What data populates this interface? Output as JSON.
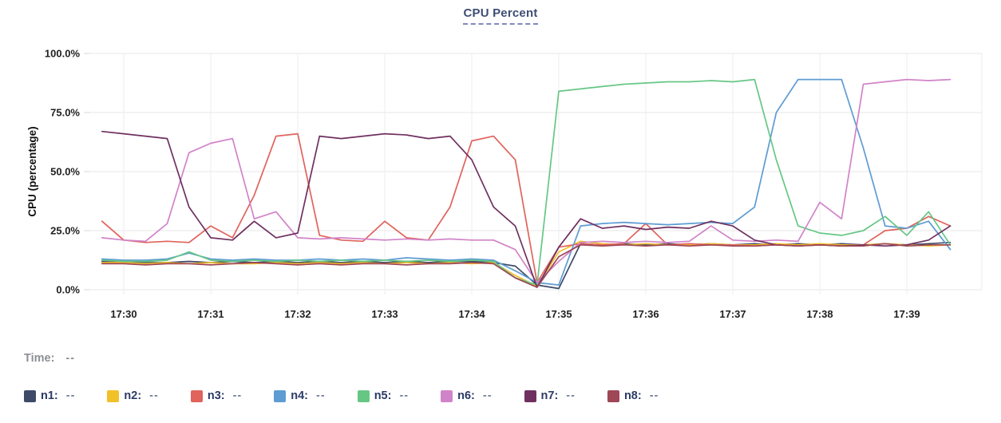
{
  "title": "CPU Percent",
  "time_row": {
    "label": "Time:",
    "value": "--"
  },
  "legend": {
    "items": [
      {
        "id": "n1",
        "label": "n1:",
        "value": "--",
        "color": "#3e4a68"
      },
      {
        "id": "n2",
        "label": "n2:",
        "value": "--",
        "color": "#f2c029"
      },
      {
        "id": "n3",
        "label": "n3:",
        "value": "--",
        "color": "#e0635c"
      },
      {
        "id": "n4",
        "label": "n4:",
        "value": "--",
        "color": "#5e9cd3"
      },
      {
        "id": "n5",
        "label": "n5:",
        "value": "--",
        "color": "#66c784"
      },
      {
        "id": "n6",
        "label": "n6:",
        "value": "--",
        "color": "#d183c9"
      },
      {
        "id": "n7",
        "label": "n7:",
        "value": "--",
        "color": "#6f3060"
      },
      {
        "id": "n8",
        "label": "n8:",
        "value": "--",
        "color": "#9e4756"
      }
    ]
  },
  "chart_data": {
    "type": "line",
    "title": "CPU Percent",
    "ylabel": "CPU (percentage)",
    "xlabel": "",
    "ylim": [
      0,
      100
    ],
    "grid": true,
    "legend_position": "bottom",
    "y_ticks": [
      {
        "value": 0,
        "label": "0.0%"
      },
      {
        "value": 25,
        "label": "25.0%"
      },
      {
        "value": 50,
        "label": "50.0%"
      },
      {
        "value": 75,
        "label": "75.0%"
      },
      {
        "value": 100,
        "label": "100.0%"
      }
    ],
    "x_ticks": [
      "17:30",
      "17:31",
      "17:32",
      "17:33",
      "17:34",
      "17:35",
      "17:36",
      "17:37",
      "17:38",
      "17:39"
    ],
    "x": [
      "17:29:45",
      "17:30:00",
      "17:30:15",
      "17:30:30",
      "17:30:45",
      "17:31:00",
      "17:31:15",
      "17:31:30",
      "17:31:45",
      "17:32:00",
      "17:32:15",
      "17:32:30",
      "17:32:45",
      "17:33:00",
      "17:33:15",
      "17:33:30",
      "17:33:45",
      "17:34:00",
      "17:34:15",
      "17:34:30",
      "17:34:45",
      "17:35:00",
      "17:35:15",
      "17:35:30",
      "17:35:45",
      "17:36:00",
      "17:36:15",
      "17:36:30",
      "17:36:45",
      "17:37:00",
      "17:37:15",
      "17:37:30",
      "17:37:45",
      "17:38:00",
      "17:38:15",
      "17:38:30",
      "17:38:45",
      "17:39:00",
      "17:39:15",
      "17:39:30"
    ],
    "series": [
      {
        "name": "n1",
        "color": "#3e4a68",
        "values": [
          12,
          12,
          11.5,
          11.5,
          12,
          11.5,
          12,
          11.5,
          12,
          11.5,
          12,
          11.5,
          12,
          11.5,
          12,
          11.5,
          12,
          12,
          11.5,
          10,
          2,
          0.5,
          19.5,
          19,
          19.5,
          19,
          19.5,
          19,
          19.5,
          19,
          19.5,
          19,
          19.5,
          19,
          19.5,
          19,
          19.5,
          19,
          19.5,
          20
        ]
      },
      {
        "name": "n2",
        "color": "#f2c029",
        "values": [
          11.5,
          11.5,
          11,
          11.5,
          11,
          11.5,
          11,
          11,
          11.5,
          11,
          11.5,
          11,
          11.5,
          11,
          11.5,
          11,
          11.5,
          11,
          11.5,
          6,
          1.5,
          16,
          20.5,
          19.5,
          19,
          19.5,
          19,
          19,
          19.5,
          19,
          19,
          19.5,
          19,
          19.5,
          19,
          19,
          19.5,
          19,
          18.5,
          19
        ]
      },
      {
        "name": "n3",
        "color": "#e0635c",
        "values": [
          29,
          21,
          20,
          20.5,
          20,
          27,
          22,
          40,
          65,
          66,
          23,
          21,
          20.5,
          29,
          22,
          21,
          35,
          63,
          65,
          55,
          3,
          18,
          19.5,
          19,
          19.5,
          28,
          19,
          19.5,
          19,
          19,
          18.5,
          19,
          18.5,
          19,
          18.5,
          19,
          25,
          26,
          31,
          27
        ]
      },
      {
        "name": "n4",
        "color": "#5e9cd3",
        "values": [
          13,
          12.5,
          12.5,
          13,
          15.5,
          13,
          12.5,
          13,
          12.5,
          12.5,
          13,
          12.5,
          13,
          12.5,
          13.5,
          13,
          12.5,
          13,
          12.5,
          8,
          3,
          2,
          27,
          28,
          28.5,
          28,
          27.5,
          28,
          28.5,
          28,
          35,
          75,
          89,
          89,
          89,
          60,
          27,
          26,
          29,
          17
        ]
      },
      {
        "name": "n5",
        "color": "#66c784",
        "values": [
          12.5,
          12,
          12,
          12.5,
          16,
          12.5,
          12,
          12.5,
          12,
          12.5,
          12,
          12.5,
          12,
          12.5,
          12,
          12.5,
          12,
          12.5,
          12,
          5,
          2,
          84,
          85,
          86,
          87,
          87.5,
          88,
          88,
          88.5,
          88,
          89,
          55,
          27,
          24,
          23,
          25,
          31,
          23,
          33,
          19
        ]
      },
      {
        "name": "n6",
        "color": "#d183c9",
        "values": [
          22,
          21,
          20.5,
          28,
          58,
          62,
          64,
          30,
          33,
          22,
          21.5,
          22,
          21.5,
          21,
          21.5,
          21,
          21.5,
          21,
          21,
          17,
          3,
          12,
          20,
          20.5,
          20,
          20.5,
          20,
          20.5,
          27,
          21,
          20.5,
          21,
          20.5,
          37,
          30,
          87,
          88,
          89,
          88.5,
          89
        ]
      },
      {
        "name": "n7",
        "color": "#6f3060",
        "values": [
          67,
          66,
          65,
          64,
          35,
          22,
          21,
          29,
          22,
          24,
          65,
          64,
          65,
          66,
          65.5,
          64,
          65,
          55,
          35,
          27,
          1,
          18,
          30,
          26,
          27,
          25.5,
          26.5,
          26,
          29,
          27,
          21,
          19,
          18.5,
          19,
          18.5,
          19,
          18.5,
          19,
          21,
          27
        ]
      },
      {
        "name": "n8",
        "color": "#9e4756",
        "values": [
          11,
          11,
          10.5,
          11,
          11,
          10.5,
          11,
          11.5,
          11,
          10.5,
          11,
          10.5,
          11,
          11,
          10.5,
          11,
          11,
          11.5,
          11,
          5,
          1,
          14,
          19,
          18.5,
          19,
          18.5,
          19,
          18.5,
          19,
          18.5,
          18.5,
          19,
          18.5,
          19,
          18.5,
          18.5,
          19.5,
          18.5,
          19,
          19
        ]
      }
    ]
  }
}
